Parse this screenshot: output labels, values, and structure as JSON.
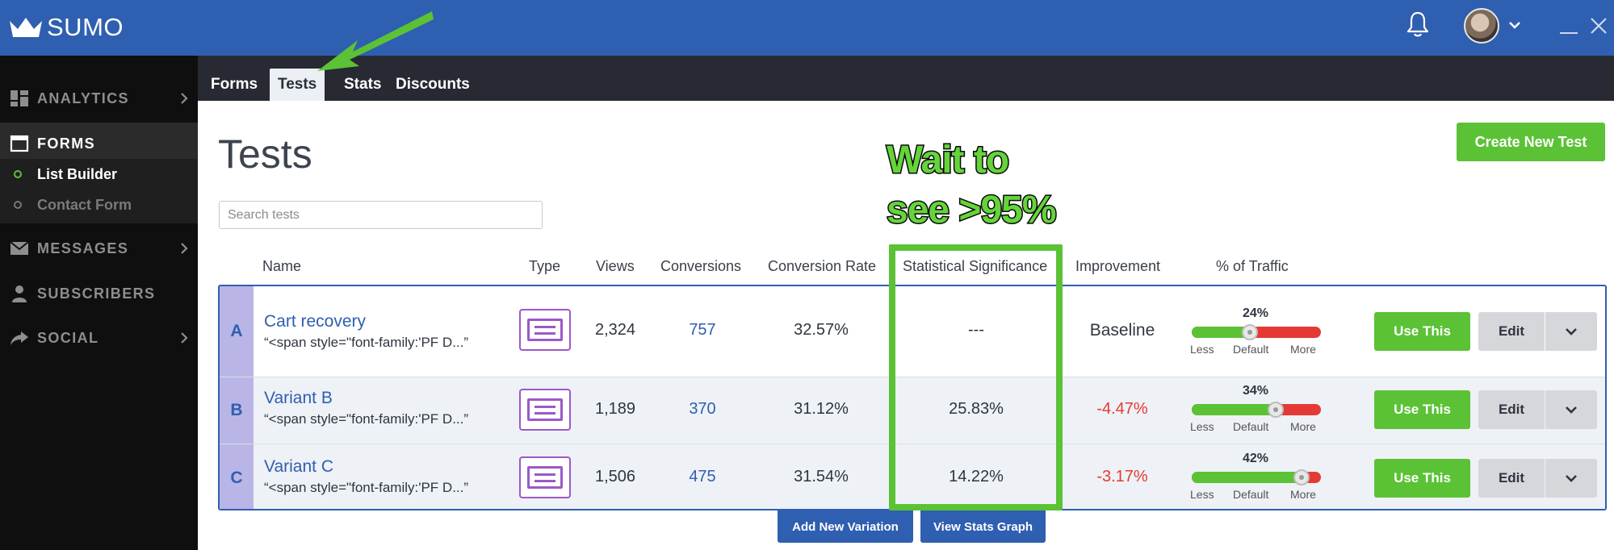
{
  "brand": {
    "name": "SUMO"
  },
  "colors": {
    "header": "#2f5fb0",
    "accent_green": "#5bc236",
    "negative_red": "#e53935",
    "link_blue": "#2f5fb0",
    "type_icon_purple": "#9b59c9"
  },
  "sidebar": {
    "items": [
      {
        "label": "ANALYTICS",
        "icon": "grid-icon"
      },
      {
        "label": "FORMS",
        "icon": "window-icon"
      },
      {
        "label": "MESSAGES",
        "icon": "envelope-icon"
      },
      {
        "label": "SUBSCRIBERS",
        "icon": "person-icon"
      },
      {
        "label": "SOCIAL",
        "icon": "share-icon"
      }
    ],
    "subitems": [
      {
        "label": "List Builder"
      },
      {
        "label": "Contact Form"
      }
    ]
  },
  "tabs": [
    {
      "label": "Forms"
    },
    {
      "label": "Tests"
    },
    {
      "label": "Stats"
    },
    {
      "label": "Discounts"
    }
  ],
  "page": {
    "title": "Tests",
    "create_button": "Create New Test",
    "search_placeholder": "Search tests"
  },
  "table": {
    "headers": {
      "name": "Name",
      "type": "Type",
      "views": "Views",
      "conversions": "Conversions",
      "conversion_rate": "Conversion Rate",
      "significance": "Statistical Significance",
      "improvement": "Improvement",
      "traffic": "% of Traffic"
    },
    "slider_labels": {
      "less": "Less",
      "default": "Default",
      "more": "More"
    },
    "rows": [
      {
        "letter": "A",
        "name": "Cart recovery",
        "snippet": "“<span style=\"font-family:'PF D...”",
        "views": "2,324",
        "conversions": "757",
        "conversion_rate": "32.57%",
        "significance": "---",
        "improvement": "Baseline",
        "traffic_label": "24%",
        "traffic_slider": 0.45,
        "use_label": "Use This",
        "edit_label": "Edit"
      },
      {
        "letter": "B",
        "name": "Variant B",
        "snippet": "“<span style=\"font-family:'PF D...”",
        "views": "1,189",
        "conversions": "370",
        "conversion_rate": "31.12%",
        "significance": "25.83%",
        "improvement": "-4.47%",
        "traffic_label": "34%",
        "traffic_slider": 0.65,
        "use_label": "Use This",
        "edit_label": "Edit"
      },
      {
        "letter": "C",
        "name": "Variant C",
        "snippet": "“<span style=\"font-family:'PF D...”",
        "views": "1,506",
        "conversions": "475",
        "conversion_rate": "31.54%",
        "significance": "14.22%",
        "improvement": "-3.17%",
        "traffic_label": "42%",
        "traffic_slider": 0.85,
        "use_label": "Use This",
        "edit_label": "Edit"
      }
    ]
  },
  "actions": {
    "add_variation": "Add New Variation",
    "view_stats": "View Stats Graph"
  },
  "annotation": {
    "line1": "Wait to",
    "line2": "see >95%"
  }
}
